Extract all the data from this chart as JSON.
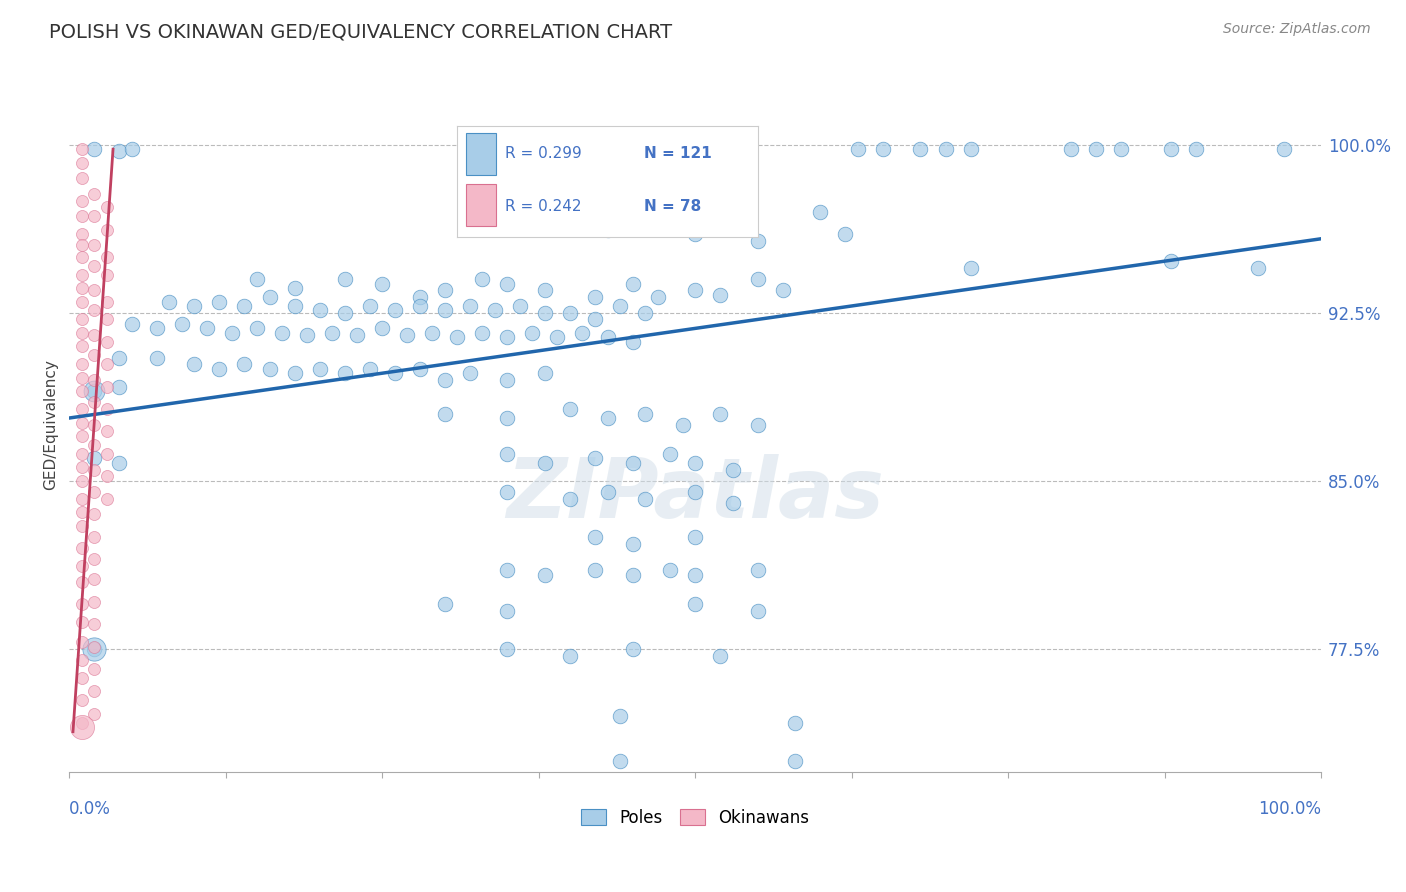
{
  "title": "POLISH VS OKINAWAN GED/EQUIVALENCY CORRELATION CHART",
  "source": "Source: ZipAtlas.com",
  "ylabel": "GED/Equivalency",
  "ytick_labels": [
    "77.5%",
    "85.0%",
    "92.5%",
    "100.0%"
  ],
  "ytick_values": [
    0.775,
    0.85,
    0.925,
    1.0
  ],
  "xlim": [
    0.0,
    1.0
  ],
  "ylim": [
    0.72,
    1.03
  ],
  "legend_blue_r": "R = 0.299",
  "legend_blue_n": "N = 121",
  "legend_pink_r": "R = 0.242",
  "legend_pink_n": "N = 78",
  "blue_color": "#a8cde8",
  "blue_edge_color": "#4a90c4",
  "blue_line_color": "#2166ac",
  "pink_color": "#f4b8c8",
  "pink_edge_color": "#d97090",
  "pink_line_color": "#c04060",
  "watermark": "ZIPatlas",
  "background_color": "#ffffff",
  "grid_color": "#bbbbbb",
  "blue_points": [
    [
      0.02,
      0.998
    ],
    [
      0.04,
      0.997
    ],
    [
      0.05,
      0.998
    ],
    [
      0.38,
      0.998
    ],
    [
      0.4,
      0.998
    ],
    [
      0.45,
      0.998
    ],
    [
      0.63,
      0.998
    ],
    [
      0.65,
      0.998
    ],
    [
      0.68,
      0.998
    ],
    [
      0.7,
      0.998
    ],
    [
      0.72,
      0.998
    ],
    [
      0.8,
      0.998
    ],
    [
      0.82,
      0.998
    ],
    [
      0.84,
      0.998
    ],
    [
      0.88,
      0.998
    ],
    [
      0.9,
      0.998
    ],
    [
      0.97,
      0.998
    ],
    [
      0.37,
      0.97
    ],
    [
      0.43,
      0.962
    ],
    [
      0.5,
      0.96
    ],
    [
      0.55,
      0.957
    ],
    [
      0.6,
      0.97
    ],
    [
      0.62,
      0.96
    ],
    [
      0.72,
      0.945
    ],
    [
      0.88,
      0.948
    ],
    [
      0.95,
      0.945
    ],
    [
      0.15,
      0.94
    ],
    [
      0.18,
      0.936
    ],
    [
      0.22,
      0.94
    ],
    [
      0.25,
      0.938
    ],
    [
      0.28,
      0.932
    ],
    [
      0.3,
      0.935
    ],
    [
      0.33,
      0.94
    ],
    [
      0.35,
      0.938
    ],
    [
      0.38,
      0.935
    ],
    [
      0.42,
      0.932
    ],
    [
      0.45,
      0.938
    ],
    [
      0.47,
      0.932
    ],
    [
      0.5,
      0.935
    ],
    [
      0.52,
      0.933
    ],
    [
      0.55,
      0.94
    ],
    [
      0.57,
      0.935
    ],
    [
      0.08,
      0.93
    ],
    [
      0.1,
      0.928
    ],
    [
      0.12,
      0.93
    ],
    [
      0.14,
      0.928
    ],
    [
      0.16,
      0.932
    ],
    [
      0.18,
      0.928
    ],
    [
      0.2,
      0.926
    ],
    [
      0.22,
      0.925
    ],
    [
      0.24,
      0.928
    ],
    [
      0.26,
      0.926
    ],
    [
      0.28,
      0.928
    ],
    [
      0.3,
      0.926
    ],
    [
      0.32,
      0.928
    ],
    [
      0.34,
      0.926
    ],
    [
      0.36,
      0.928
    ],
    [
      0.38,
      0.925
    ],
    [
      0.4,
      0.925
    ],
    [
      0.42,
      0.922
    ],
    [
      0.44,
      0.928
    ],
    [
      0.46,
      0.925
    ],
    [
      0.05,
      0.92
    ],
    [
      0.07,
      0.918
    ],
    [
      0.09,
      0.92
    ],
    [
      0.11,
      0.918
    ],
    [
      0.13,
      0.916
    ],
    [
      0.15,
      0.918
    ],
    [
      0.17,
      0.916
    ],
    [
      0.19,
      0.915
    ],
    [
      0.21,
      0.916
    ],
    [
      0.23,
      0.915
    ],
    [
      0.25,
      0.918
    ],
    [
      0.27,
      0.915
    ],
    [
      0.29,
      0.916
    ],
    [
      0.31,
      0.914
    ],
    [
      0.33,
      0.916
    ],
    [
      0.35,
      0.914
    ],
    [
      0.37,
      0.916
    ],
    [
      0.39,
      0.914
    ],
    [
      0.41,
      0.916
    ],
    [
      0.43,
      0.914
    ],
    [
      0.45,
      0.912
    ],
    [
      0.04,
      0.905
    ],
    [
      0.07,
      0.905
    ],
    [
      0.1,
      0.902
    ],
    [
      0.12,
      0.9
    ],
    [
      0.14,
      0.902
    ],
    [
      0.16,
      0.9
    ],
    [
      0.18,
      0.898
    ],
    [
      0.2,
      0.9
    ],
    [
      0.22,
      0.898
    ],
    [
      0.24,
      0.9
    ],
    [
      0.26,
      0.898
    ],
    [
      0.28,
      0.9
    ],
    [
      0.3,
      0.895
    ],
    [
      0.32,
      0.898
    ],
    [
      0.35,
      0.895
    ],
    [
      0.38,
      0.898
    ],
    [
      0.02,
      0.89
    ],
    [
      0.04,
      0.892
    ],
    [
      0.3,
      0.88
    ],
    [
      0.35,
      0.878
    ],
    [
      0.4,
      0.882
    ],
    [
      0.43,
      0.878
    ],
    [
      0.46,
      0.88
    ],
    [
      0.49,
      0.875
    ],
    [
      0.52,
      0.88
    ],
    [
      0.55,
      0.875
    ],
    [
      0.02,
      0.86
    ],
    [
      0.04,
      0.858
    ],
    [
      0.35,
      0.862
    ],
    [
      0.38,
      0.858
    ],
    [
      0.42,
      0.86
    ],
    [
      0.45,
      0.858
    ],
    [
      0.48,
      0.862
    ],
    [
      0.5,
      0.858
    ],
    [
      0.53,
      0.855
    ],
    [
      0.35,
      0.845
    ],
    [
      0.4,
      0.842
    ],
    [
      0.43,
      0.845
    ],
    [
      0.46,
      0.842
    ],
    [
      0.5,
      0.845
    ],
    [
      0.53,
      0.84
    ],
    [
      0.42,
      0.825
    ],
    [
      0.45,
      0.822
    ],
    [
      0.5,
      0.825
    ],
    [
      0.35,
      0.81
    ],
    [
      0.38,
      0.808
    ],
    [
      0.42,
      0.81
    ],
    [
      0.45,
      0.808
    ],
    [
      0.48,
      0.81
    ],
    [
      0.5,
      0.808
    ],
    [
      0.55,
      0.81
    ],
    [
      0.3,
      0.795
    ],
    [
      0.35,
      0.792
    ],
    [
      0.5,
      0.795
    ],
    [
      0.55,
      0.792
    ],
    [
      0.02,
      0.775
    ],
    [
      0.35,
      0.775
    ],
    [
      0.4,
      0.772
    ],
    [
      0.45,
      0.775
    ],
    [
      0.52,
      0.772
    ],
    [
      0.44,
      0.745
    ],
    [
      0.58,
      0.742
    ],
    [
      0.44,
      0.725
    ],
    [
      0.58,
      0.725
    ]
  ],
  "pink_points": [
    [
      0.01,
      0.998
    ],
    [
      0.01,
      0.992
    ],
    [
      0.01,
      0.985
    ],
    [
      0.01,
      0.975
    ],
    [
      0.01,
      0.968
    ],
    [
      0.01,
      0.96
    ],
    [
      0.01,
      0.955
    ],
    [
      0.01,
      0.95
    ],
    [
      0.01,
      0.942
    ],
    [
      0.01,
      0.936
    ],
    [
      0.01,
      0.93
    ],
    [
      0.01,
      0.922
    ],
    [
      0.01,
      0.916
    ],
    [
      0.01,
      0.91
    ],
    [
      0.01,
      0.902
    ],
    [
      0.01,
      0.896
    ],
    [
      0.01,
      0.89
    ],
    [
      0.01,
      0.882
    ],
    [
      0.01,
      0.876
    ],
    [
      0.01,
      0.87
    ],
    [
      0.01,
      0.862
    ],
    [
      0.01,
      0.856
    ],
    [
      0.01,
      0.85
    ],
    [
      0.01,
      0.842
    ],
    [
      0.01,
      0.836
    ],
    [
      0.01,
      0.83
    ],
    [
      0.01,
      0.82
    ],
    [
      0.01,
      0.812
    ],
    [
      0.01,
      0.805
    ],
    [
      0.01,
      0.795
    ],
    [
      0.01,
      0.787
    ],
    [
      0.01,
      0.778
    ],
    [
      0.01,
      0.77
    ],
    [
      0.01,
      0.762
    ],
    [
      0.01,
      0.752
    ],
    [
      0.01,
      0.742
    ],
    [
      0.02,
      0.978
    ],
    [
      0.02,
      0.968
    ],
    [
      0.02,
      0.955
    ],
    [
      0.02,
      0.946
    ],
    [
      0.02,
      0.935
    ],
    [
      0.02,
      0.926
    ],
    [
      0.02,
      0.915
    ],
    [
      0.02,
      0.906
    ],
    [
      0.02,
      0.895
    ],
    [
      0.02,
      0.885
    ],
    [
      0.02,
      0.875
    ],
    [
      0.02,
      0.866
    ],
    [
      0.02,
      0.855
    ],
    [
      0.02,
      0.845
    ],
    [
      0.02,
      0.835
    ],
    [
      0.02,
      0.825
    ],
    [
      0.02,
      0.815
    ],
    [
      0.02,
      0.806
    ],
    [
      0.02,
      0.796
    ],
    [
      0.02,
      0.786
    ],
    [
      0.02,
      0.776
    ],
    [
      0.02,
      0.766
    ],
    [
      0.02,
      0.756
    ],
    [
      0.02,
      0.746
    ],
    [
      0.03,
      0.972
    ],
    [
      0.03,
      0.962
    ],
    [
      0.03,
      0.95
    ],
    [
      0.03,
      0.942
    ],
    [
      0.03,
      0.93
    ],
    [
      0.03,
      0.922
    ],
    [
      0.03,
      0.912
    ],
    [
      0.03,
      0.902
    ],
    [
      0.03,
      0.892
    ],
    [
      0.03,
      0.882
    ],
    [
      0.03,
      0.872
    ],
    [
      0.03,
      0.862
    ],
    [
      0.03,
      0.852
    ],
    [
      0.03,
      0.842
    ]
  ],
  "blue_line_x": [
    0.0,
    1.0
  ],
  "blue_line_y": [
    0.878,
    0.958
  ],
  "pink_line_x": [
    0.003,
    0.035
  ],
  "pink_line_y": [
    0.738,
    0.998
  ],
  "blue_point_size": 110,
  "pink_point_size": 75,
  "large_blue_size": 280,
  "large_pink_size": 200
}
